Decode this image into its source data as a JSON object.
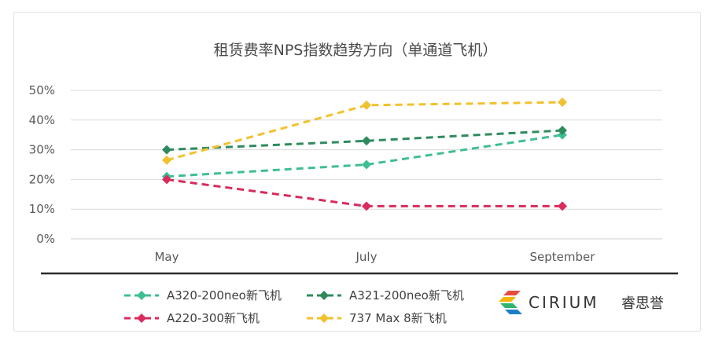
{
  "chart_data": {
    "type": "line",
    "title": "租赁费率NPS指数趋势方向（单通道飞机）",
    "categories": [
      "May",
      "July",
      "September"
    ],
    "ylim": [
      0,
      50
    ],
    "yticks": [
      0,
      10,
      20,
      30,
      40,
      50
    ],
    "ytick_labels": [
      "0%",
      "10%",
      "20%",
      "30%",
      "40%",
      "50%"
    ],
    "grid": true,
    "legend_position": "bottom",
    "series": [
      {
        "name": "A320-200neo新飞机",
        "values": [
          21,
          25,
          35
        ],
        "color": "#3ebf91"
      },
      {
        "name": "A321-200neo新飞机",
        "values": [
          30,
          33,
          36.5
        ],
        "color": "#2e8b5e"
      },
      {
        "name": "A220-300新飞机",
        "values": [
          20,
          11,
          11
        ],
        "color": "#d92b5c"
      },
      {
        "name": "737 Max 8新飞机",
        "values": [
          26.5,
          45,
          46
        ],
        "color": "#f2c12e"
      }
    ]
  },
  "logo": {
    "name": "CIRIUM",
    "cn": "睿思誉",
    "colors": [
      "#e84c3d",
      "#f4b400",
      "#2fb56d",
      "#1c7fc6"
    ]
  }
}
